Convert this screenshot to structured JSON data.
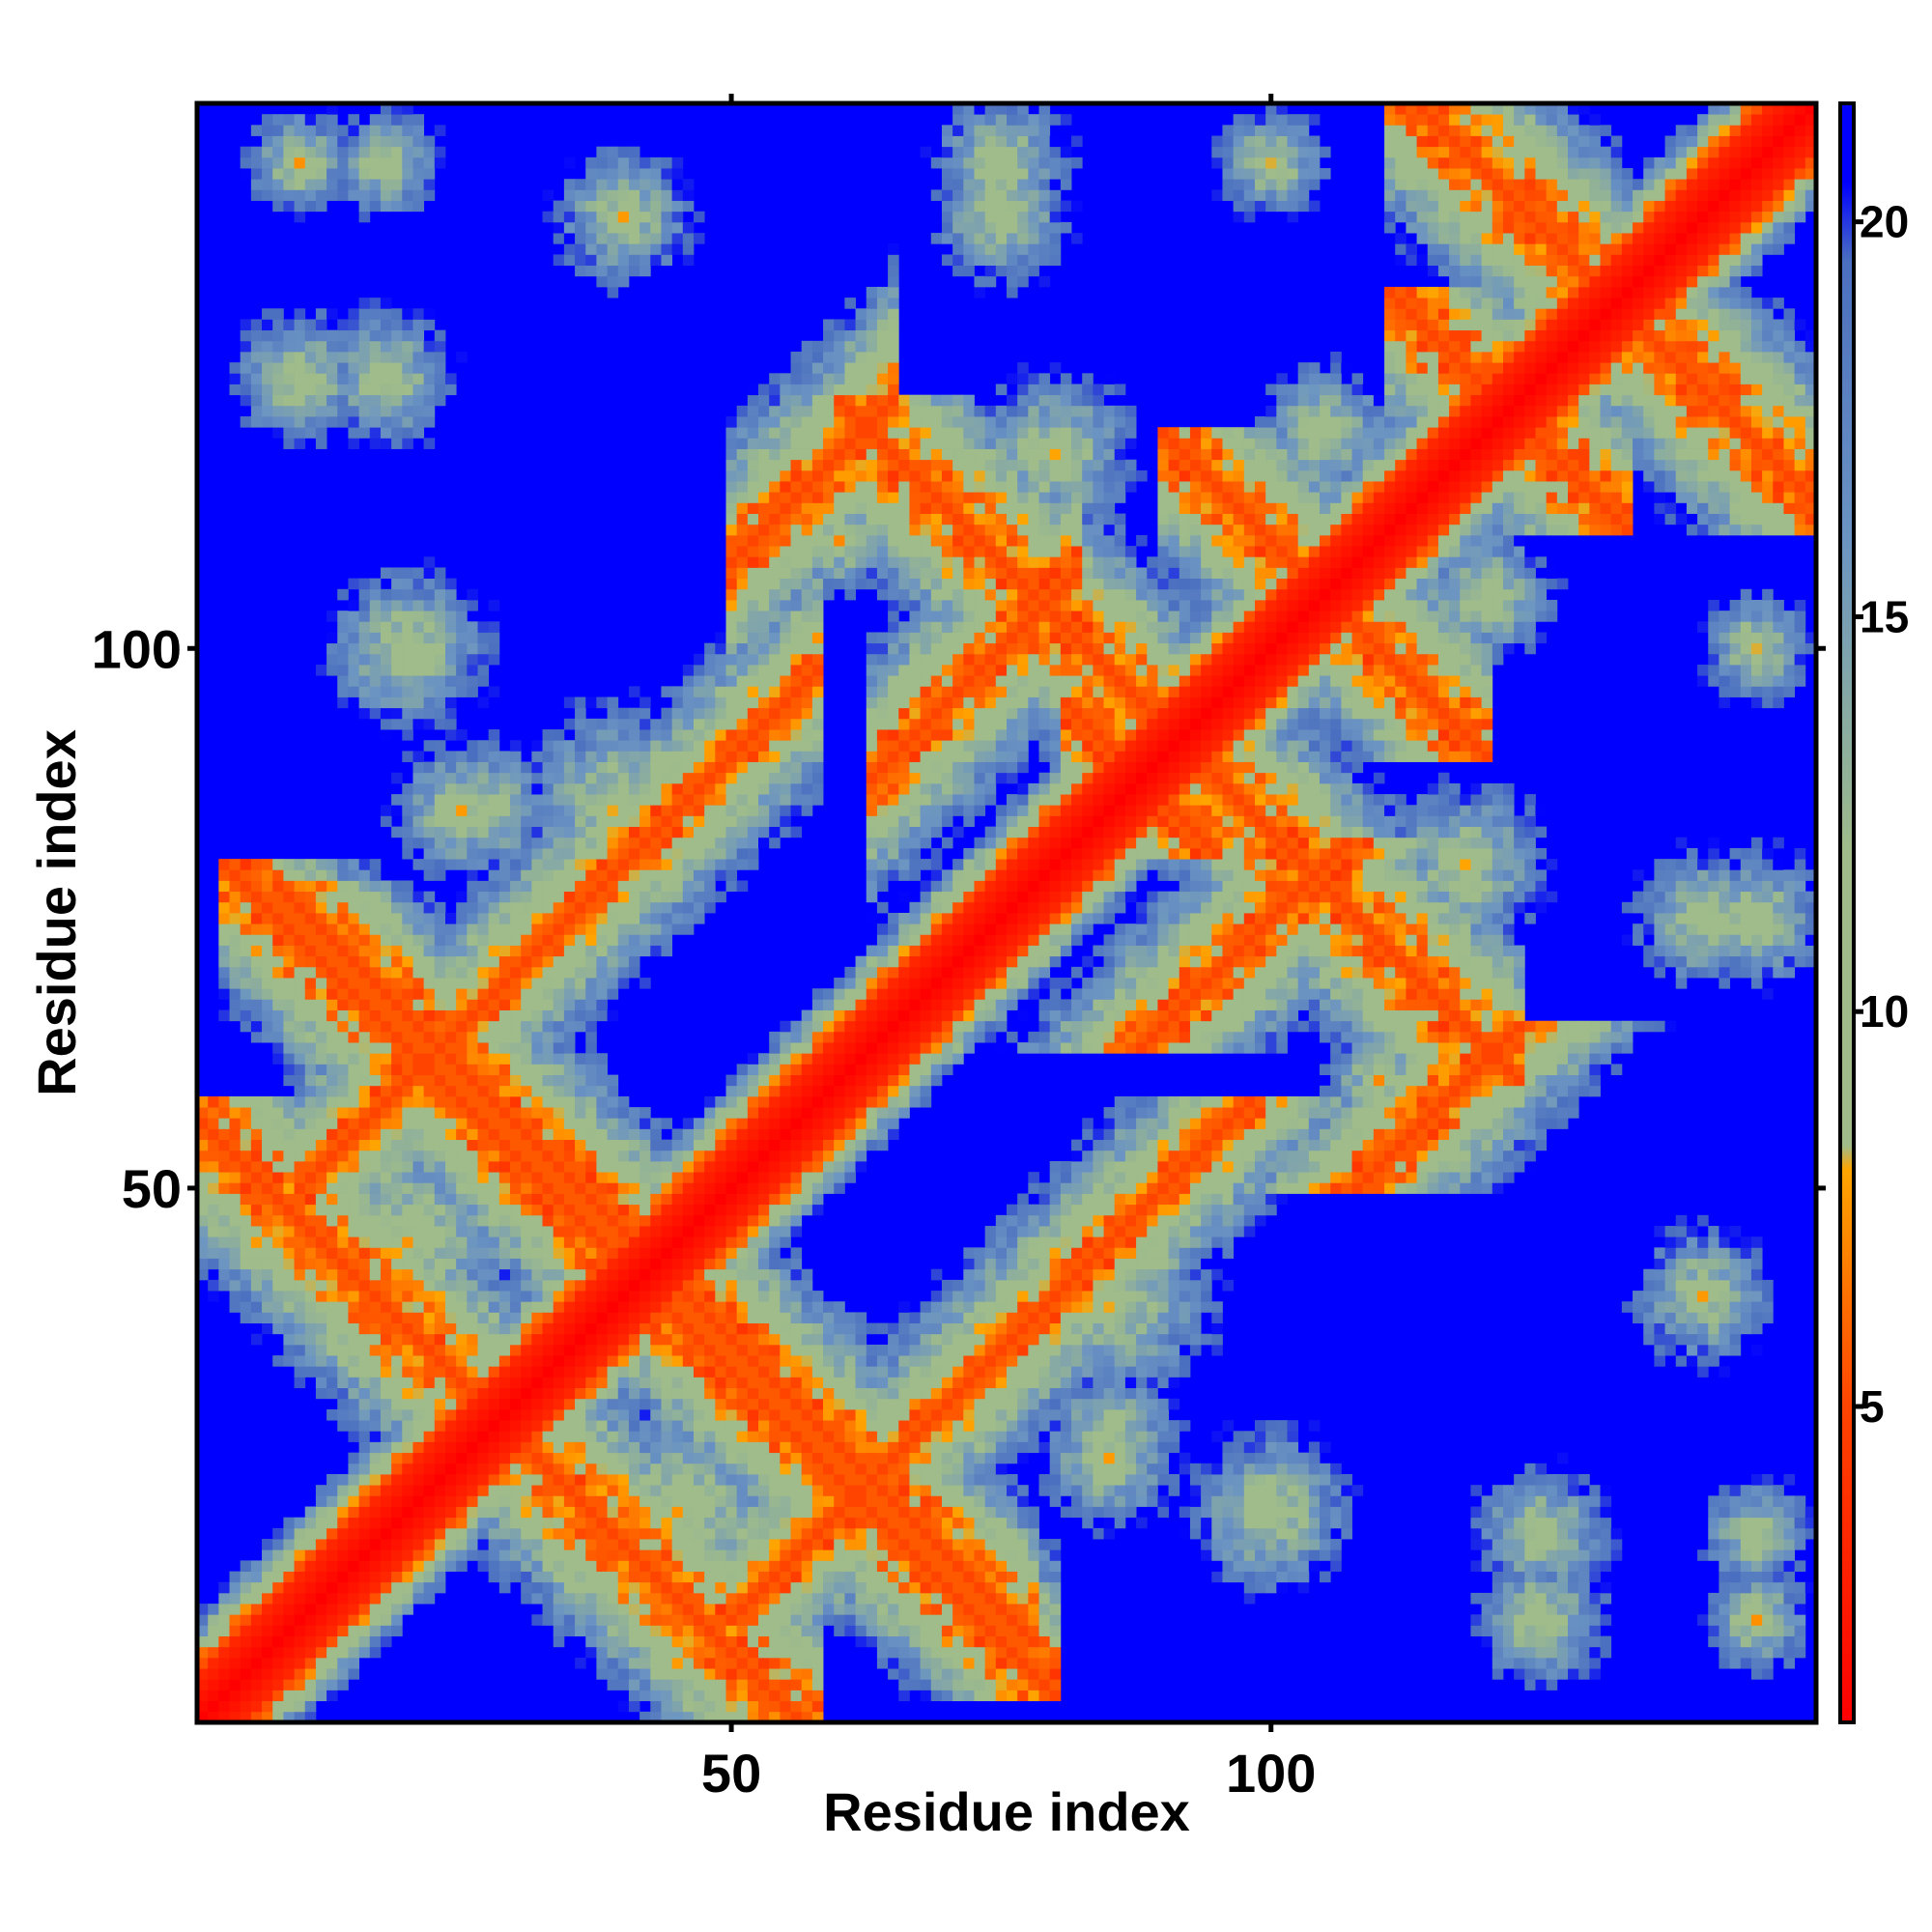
{
  "chart_data": {
    "type": "heatmap",
    "title": "",
    "xlabel": "Residue index",
    "ylabel": "Residue index",
    "x_range": [
      1,
      150
    ],
    "y_range": [
      1,
      150
    ],
    "x_ticks": [
      {
        "value": 50,
        "label": "50"
      },
      {
        "value": 100,
        "label": "100"
      }
    ],
    "y_ticks": [
      {
        "value": 50,
        "label": "50"
      },
      {
        "value": 100,
        "label": "100"
      }
    ],
    "colorbar": {
      "range": [
        1,
        21.5
      ],
      "ticks": [
        {
          "value": 5,
          "label": "5"
        },
        {
          "value": 10,
          "label": "10"
        },
        {
          "value": 15,
          "label": "15"
        },
        {
          "value": 20,
          "label": "20"
        }
      ],
      "stops": [
        {
          "value": 1,
          "color": "#ff0000"
        },
        {
          "value": 5,
          "color": "#ff4400"
        },
        {
          "value": 8,
          "color": "#ffa500"
        },
        {
          "value": 8.3,
          "color": "#9fbc8a"
        },
        {
          "value": 12,
          "color": "#9fbc8a"
        },
        {
          "value": 16,
          "color": "#6b94c2"
        },
        {
          "value": 19.5,
          "color": "#4b6fc0"
        },
        {
          "value": 20.5,
          "color": "#0000ff"
        },
        {
          "value": 21.5,
          "color": "#0000ff"
        }
      ],
      "cutoff_color": "#0000ff",
      "cutoff_value": 20.5
    },
    "description_of_values": "symmetric residue-residue distance map (Angstrom-like units); diagonal near 1-4, contact bands 6-16, background >20",
    "features": [
      {
        "kind": "diagonal",
        "i_start": 1,
        "i_end": 150,
        "half_width": 3.2
      },
      {
        "kind": "antiparallel",
        "sum": 57,
        "x_from": 1,
        "x_to": 53,
        "half_width": 3.5
      },
      {
        "kind": "antiparallel",
        "sum": 86,
        "x_from": 38,
        "x_to": 76,
        "half_width": 3.0
      },
      {
        "kind": "antiparallel",
        "sum": 83,
        "x_from": 5,
        "x_to": 78,
        "half_width": 3.0
      },
      {
        "kind": "antiparallel",
        "sum": 183,
        "x_from": 62,
        "x_to": 121,
        "half_width": 3.5
      },
      {
        "kind": "antiparallel",
        "sum": 176,
        "x_from": 83,
        "x_to": 93,
        "half_width": 3.0
      },
      {
        "kind": "antiparallel",
        "sum": 264,
        "x_from": 113,
        "x_to": 150,
        "half_width": 3.5
      },
      {
        "kind": "antiparallel",
        "sum": 244,
        "x_from": 113,
        "x_to": 131,
        "half_width": 3.0
      },
      {
        "kind": "antiparallel",
        "sum": 210,
        "x_from": 92,
        "x_to": 118,
        "half_width": 3.0
      },
      {
        "kind": "parallel",
        "offset": 58,
        "x_from": 52,
        "x_to": 63,
        "half_width": 2.5
      },
      {
        "kind": "parallel",
        "offset": 25,
        "x_from": 65,
        "x_to": 80,
        "half_width": 2.5
      },
      {
        "kind": "parallel",
        "offset": 40,
        "x_from": 12,
        "x_to": 56,
        "half_width": 2.0
      },
      {
        "kind": "blob",
        "x": 20,
        "y": 45,
        "radius": 9
      },
      {
        "kind": "blob",
        "x": 85,
        "y": 40,
        "radius": 8
      },
      {
        "kind": "blob",
        "x": 85,
        "y": 27,
        "radius": 5
      },
      {
        "kind": "blob",
        "x": 100,
        "y": 20,
        "radius": 6
      },
      {
        "kind": "blob",
        "x": 125,
        "y": 18,
        "radius": 5
      },
      {
        "kind": "blob",
        "x": 145,
        "y": 18,
        "radius": 4
      },
      {
        "kind": "blob",
        "x": 10,
        "y": 125,
        "radius": 5
      },
      {
        "kind": "blob",
        "x": 10,
        "y": 145,
        "radius": 4
      },
      {
        "kind": "blob",
        "x": 25,
        "y": 85,
        "radius": 5
      },
      {
        "kind": "blob",
        "x": 40,
        "y": 85,
        "radius": 6
      },
      {
        "kind": "blob",
        "x": 40,
        "y": 140,
        "radius": 5
      },
      {
        "kind": "blob",
        "x": 75,
        "y": 145,
        "radius": 5
      },
      {
        "kind": "blob",
        "x": 118,
        "y": 80,
        "radius": 6
      },
      {
        "kind": "blob",
        "x": 140,
        "y": 75,
        "radius": 5
      },
      {
        "kind": "blob",
        "x": 120,
        "y": 105,
        "radius": 5
      },
      {
        "kind": "blob",
        "x": 145,
        "y": 100,
        "radius": 4
      },
      {
        "kind": "blob",
        "x": 60,
        "y": 110,
        "radius": 4
      }
    ]
  }
}
